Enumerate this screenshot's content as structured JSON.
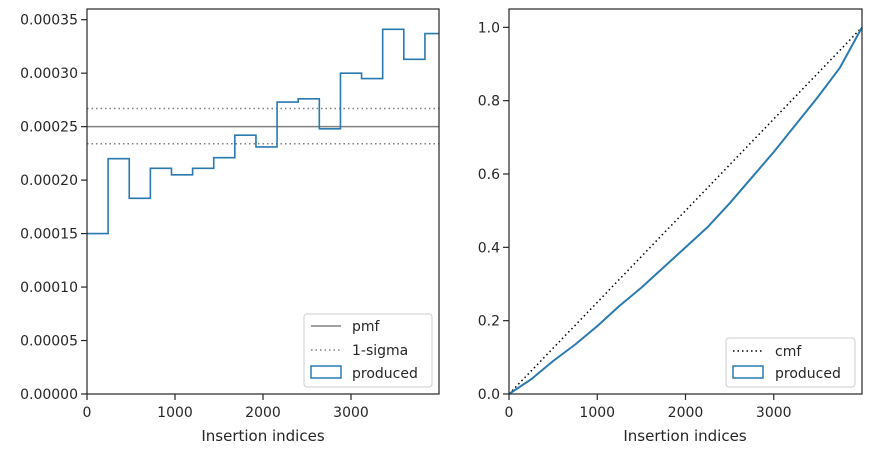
{
  "chart_data": [
    {
      "type": "histogram-step",
      "xlabel": "Insertion indices",
      "ylabel": "",
      "xlim": [
        0,
        4000
      ],
      "ylim": [
        0,
        0.00036
      ],
      "xticks": [
        "0",
        "1000",
        "2000",
        "3000"
      ],
      "yticks": [
        "0.00000",
        "0.00005",
        "0.00010",
        "0.00015",
        "0.00020",
        "0.00025",
        "0.00030",
        "0.00035"
      ],
      "legend_position": "lower-right",
      "legend": [
        "pmf",
        "1-sigma",
        "produced"
      ],
      "pmf": 0.00025,
      "sigma_band": [
        0.000234,
        0.000267
      ],
      "bin_edges": [
        0,
        240,
        480,
        720,
        960,
        1200,
        1440,
        1680,
        1920,
        2160,
        2400,
        2640,
        2880,
        3120,
        3360,
        3600,
        3840,
        4000
      ],
      "values": [
        0.00015,
        0.00022,
        0.000183,
        0.000211,
        0.000205,
        0.000211,
        0.000221,
        0.000242,
        0.000231,
        0.000273,
        0.000276,
        0.000248,
        0.0003,
        0.000295,
        0.000341,
        0.000313,
        0.000337
      ],
      "colors": {
        "pmf": "#808080",
        "sigma": "#808080",
        "produced": "#2a7ab0"
      }
    },
    {
      "type": "line",
      "xlabel": "Insertion indices",
      "ylabel": "",
      "xlim": [
        0,
        4000
      ],
      "ylim": [
        0,
        1.05
      ],
      "xticks": [
        "0",
        "1000",
        "2000",
        "3000"
      ],
      "yticks": [
        "0.0",
        "0.2",
        "0.4",
        "0.6",
        "0.8",
        "1.0"
      ],
      "legend_position": "lower-right",
      "legend": [
        "cmf",
        "produced"
      ],
      "cmf": {
        "x": [
          0,
          4000
        ],
        "y": [
          0,
          1.0
        ]
      },
      "produced": {
        "x": [
          0,
          250,
          500,
          750,
          1000,
          1250,
          1500,
          1750,
          2000,
          2250,
          2500,
          2750,
          3000,
          3250,
          3500,
          3750,
          4000
        ],
        "y": [
          0,
          0.04,
          0.09,
          0.135,
          0.185,
          0.24,
          0.29,
          0.345,
          0.4,
          0.455,
          0.52,
          0.59,
          0.66,
          0.735,
          0.81,
          0.89,
          1.0
        ]
      },
      "colors": {
        "cmf": "#000000",
        "produced": "#2a7ab0"
      }
    }
  ]
}
